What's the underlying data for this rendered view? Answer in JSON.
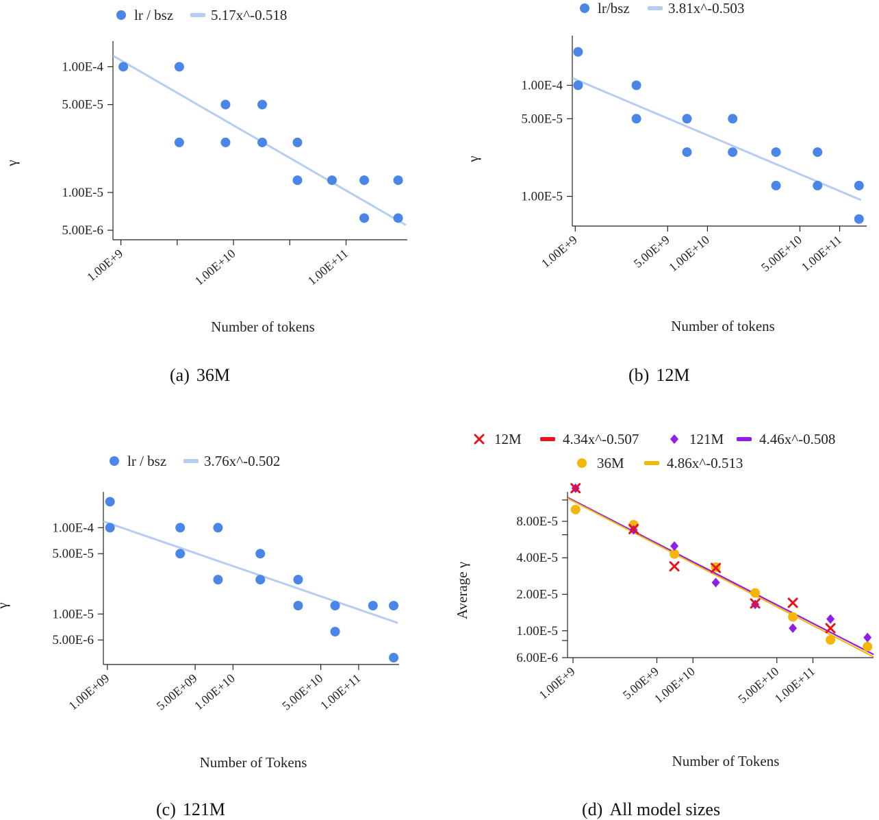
{
  "chart_data": [
    {
      "id": "a",
      "type": "scatter",
      "caption_label": "(a)",
      "caption_title": "36M",
      "xlabel": "Number of tokens",
      "ylabel": "γ",
      "xscale": "log",
      "yscale": "log",
      "xlim": [
        850000000.0,
        350000000000.0
      ],
      "ylim": [
        4.2e-06,
        0.00016
      ],
      "xticks": [
        {
          "v": 1000000000.0,
          "label": "1.00E+9"
        },
        {
          "v": 10000000000.0,
          "label": "1.00E+10"
        },
        {
          "v": 100000000000.0,
          "label": "1.00E+11"
        }
      ],
      "xminor": [
        3162000000.0,
        31620000000.0
      ],
      "yticks": [
        {
          "v": 0.0001,
          "label": "1.00E-4"
        },
        {
          "v": 5e-05,
          "label": "5.00E-5"
        },
        {
          "v": 1e-05,
          "label": "1.00E-5"
        },
        {
          "v": 5e-06,
          "label": "5.00E-6"
        }
      ],
      "yminor": [],
      "legend": {
        "position": "top",
        "entries": [
          {
            "kind": "dot",
            "color": "#4a86e8",
            "label": "lr / bsz"
          },
          {
            "kind": "line",
            "color": "#b4cdf0",
            "label": "5.17x^-0.518"
          }
        ]
      },
      "series": [
        {
          "name": "lr / bsz",
          "kind": "scatter",
          "marker": "circle",
          "color": "#4a86e8",
          "points": [
            [
              1050000000.0,
              0.0001
            ],
            [
              3300000000.0,
              0.0001
            ],
            [
              8500000000.0,
              5e-05
            ],
            [
              8500000000.0,
              2.5e-05
            ],
            [
              3300000000.0,
              2.5e-05
            ],
            [
              18000000000.0,
              5e-05
            ],
            [
              18000000000.0,
              2.5e-05
            ],
            [
              37000000000.0,
              2.5e-05
            ],
            [
              37000000000.0,
              1.25e-05
            ],
            [
              75000000000.0,
              1.25e-05
            ],
            [
              145000000000.0,
              1.25e-05
            ],
            [
              145000000000.0,
              6.25e-06
            ],
            [
              290000000000.0,
              1.25e-05
            ],
            [
              290000000000.0,
              6.25e-06
            ]
          ]
        },
        {
          "name": "5.17x^-0.518",
          "kind": "fit",
          "color": "#b4cdf0",
          "a": 5.17,
          "b": -0.518,
          "xrange": [
            850000000.0,
            340000000000.0
          ]
        }
      ]
    },
    {
      "id": "b",
      "type": "scatter",
      "caption_label": "(b)",
      "caption_title": "12M",
      "xlabel": "Number of tokens",
      "ylabel": "γ",
      "xscale": "log",
      "yscale": "log",
      "xlim": [
        950000000.0,
        160000000000.0
      ],
      "ylim": [
        5.4e-06,
        0.00028
      ],
      "xticks": [
        {
          "v": 1000000000.0,
          "label": "1.00E+9"
        },
        {
          "v": 5000000000.0,
          "label": "5.00E+9"
        },
        {
          "v": 10000000000.0,
          "label": "1.00E+10"
        },
        {
          "v": 50000000000.0,
          "label": "5.00E+10"
        },
        {
          "v": 100000000000.0,
          "label": "1.00E+11"
        }
      ],
      "xminor": [],
      "yticks": [
        {
          "v": 0.0001,
          "label": "1.00E-4"
        },
        {
          "v": 5e-05,
          "label": "5.00E-5"
        },
        {
          "v": 1e-05,
          "label": "1.00E-5"
        }
      ],
      "yminor": [],
      "legend": {
        "position": "top",
        "entries": [
          {
            "kind": "dot",
            "color": "#4a86e8",
            "label": "lr/bsz"
          },
          {
            "kind": "line",
            "color": "#b4cdf0",
            "label": "3.81x^-0.503"
          }
        ]
      },
      "series": [
        {
          "name": "lr/bsz",
          "kind": "scatter",
          "marker": "circle",
          "color": "#4a86e8",
          "points": [
            [
              1050000000.0,
              0.0002
            ],
            [
              1050000000.0,
              0.0001
            ],
            [
              2900000000.0,
              0.0001
            ],
            [
              2900000000.0,
              5e-05
            ],
            [
              7000000000.0,
              5e-05
            ],
            [
              7000000000.0,
              2.5e-05
            ],
            [
              15500000000.0,
              5e-05
            ],
            [
              15500000000.0,
              2.5e-05
            ],
            [
              33000000000.0,
              2.5e-05
            ],
            [
              33000000000.0,
              1.25e-05
            ],
            [
              68000000000.0,
              2.5e-05
            ],
            [
              68000000000.0,
              1.25e-05
            ],
            [
              140000000000.0,
              1.25e-05
            ],
            [
              140000000000.0,
              6.25e-06
            ]
          ]
        },
        {
          "name": "3.81x^-0.503",
          "kind": "fit",
          "color": "#b4cdf0",
          "a": 3.81,
          "b": -0.503,
          "xrange": [
            950000000.0,
            145000000000.0
          ]
        }
      ]
    },
    {
      "id": "c",
      "type": "scatter",
      "caption_label": "(c)",
      "caption_title": "121M",
      "xlabel": "Number of Tokens",
      "ylabel": "γ",
      "xscale": "log",
      "yscale": "log",
      "xlim": [
        930000000.0,
        210000000000.0
      ],
      "ylim": [
        2.6e-06,
        0.00026
      ],
      "xticks": [
        {
          "v": 1000000000.0,
          "label": "1.00E+09"
        },
        {
          "v": 5000000000.0,
          "label": "5.00E+09"
        },
        {
          "v": 10000000000.0,
          "label": "1.00E+10"
        },
        {
          "v": 50000000000.0,
          "label": "5.00E+10"
        },
        {
          "v": 100000000000.0,
          "label": "1.00E+11"
        }
      ],
      "xminor": [],
      "yticks": [
        {
          "v": 0.0001,
          "label": "1.00E-4"
        },
        {
          "v": 5e-05,
          "label": "5.00E-5"
        },
        {
          "v": 1e-05,
          "label": "1.00E-5"
        },
        {
          "v": 5e-06,
          "label": "5.00E-6"
        }
      ],
      "yminor": [],
      "legend": {
        "position": "top",
        "entries": [
          {
            "kind": "dot",
            "color": "#4a86e8",
            "label": "lr / bsz"
          },
          {
            "kind": "line",
            "color": "#b4cdf0",
            "label": "3.76x^-0.502"
          }
        ]
      },
      "series": [
        {
          "name": "lr / bsz",
          "kind": "scatter",
          "marker": "circle",
          "color": "#4a86e8",
          "points": [
            [
              1050000000.0,
              0.0002
            ],
            [
              1050000000.0,
              0.0001
            ],
            [
              3800000000.0,
              0.0001
            ],
            [
              3800000000.0,
              5e-05
            ],
            [
              7600000000.0,
              0.0001
            ],
            [
              7600000000.0,
              2.5e-05
            ],
            [
              16500000000.0,
              5e-05
            ],
            [
              16500000000.0,
              2.5e-05
            ],
            [
              33000000000.0,
              2.5e-05
            ],
            [
              33000000000.0,
              1.25e-05
            ],
            [
              65000000000.0,
              1.25e-05
            ],
            [
              65000000000.0,
              6.25e-06
            ],
            [
              130000000000.0,
              1.25e-05
            ],
            [
              190000000000.0,
              1.25e-05
            ],
            [
              190000000000.0,
              3.12e-06
            ]
          ]
        },
        {
          "name": "3.76x^-0.502",
          "kind": "fit",
          "color": "#b4cdf0",
          "a": 3.76,
          "b": -0.502,
          "xrange": [
            930000000.0,
            205000000000.0
          ]
        }
      ]
    },
    {
      "id": "d",
      "type": "scatter",
      "caption_label": "(d)",
      "caption_title": "All model sizes",
      "xlabel": "Number of Tokens",
      "ylabel": "Average γ",
      "xscale": "log",
      "yscale": "log",
      "xlim": [
        900000000.0,
        320000000000.0
      ],
      "ylim": [
        6e-06,
        0.00014
      ],
      "xticks": [
        {
          "v": 1000000000.0,
          "label": "1.00E+9"
        },
        {
          "v": 5000000000.0,
          "label": "5.00E+9"
        },
        {
          "v": 10000000000.0,
          "label": "1.00E+10"
        },
        {
          "v": 50000000000.0,
          "label": "5.00E+10"
        },
        {
          "v": 100000000000.0,
          "label": "1.00E+11"
        }
      ],
      "xminor": [],
      "yticks": [
        {
          "v": 8e-05,
          "label": "8.00E-5"
        },
        {
          "v": 4e-05,
          "label": "4.00E-5"
        },
        {
          "v": 2e-05,
          "label": "2.00E-5"
        },
        {
          "v": 1e-05,
          "label": "1.00E-5"
        },
        {
          "v": 6e-06,
          "label": "6.00E-6"
        }
      ],
      "yminor": [
        0.00012,
        6.2e-05,
        8.3e-06
      ],
      "legend": {
        "position": "top",
        "entries": [
          {
            "kind": "star",
            "color": "#e5141d",
            "label": "12M"
          },
          {
            "kind": "line",
            "color": "#e5141d",
            "label": "4.34x^-0.507"
          },
          {
            "kind": "diamond",
            "color": "#8f1ee8",
            "label": "121M"
          },
          {
            "kind": "line",
            "color": "#8f1ee8",
            "label": "4.46x^-0.508"
          },
          {
            "kind": "dot",
            "color": "#f5b60a",
            "label": "36M"
          },
          {
            "kind": "line",
            "color": "#f5b60a",
            "label": "4.86x^-0.513"
          }
        ]
      },
      "series": [
        {
          "name": "4.34x^-0.507",
          "kind": "fit",
          "color": "#e5141d",
          "a": 4.34,
          "b": -0.507,
          "xrange": [
            900000000.0,
            320000000000.0
          ]
        },
        {
          "name": "4.46x^-0.508",
          "kind": "fit",
          "color": "#8f1ee8",
          "a": 4.46,
          "b": -0.508,
          "xrange": [
            900000000.0,
            320000000000.0
          ]
        },
        {
          "name": "4.86x^-0.513",
          "kind": "fit",
          "color": "#f5b60a",
          "a": 4.86,
          "b": -0.513,
          "xrange": [
            900000000.0,
            320000000000.0
          ]
        },
        {
          "name": "36M",
          "kind": "scatter",
          "marker": "circle",
          "color": "#f5b60a",
          "points": [
            [
              1050000000.0,
              0.0001
            ],
            [
              3200000000.0,
              7.5e-05
            ],
            [
              7000000000.0,
              4.3e-05
            ],
            [
              15500000000.0,
              3.35e-05
            ],
            [
              33000000000.0,
              2.05e-05
            ],
            [
              68000000000.0,
              1.3e-05
            ],
            [
              140000000000.0,
              8.4e-06
            ],
            [
              285000000000.0,
              7.4e-06
            ]
          ]
        },
        {
          "name": "121M",
          "kind": "scatter",
          "marker": "diamond",
          "color": "#8f1ee8",
          "points": [
            [
              1050000000.0,
              0.00015
            ],
            [
              3200000000.0,
              6.8e-05
            ],
            [
              7000000000.0,
              5e-05
            ],
            [
              15500000000.0,
              2.5e-05
            ],
            [
              33000000000.0,
              1.65e-05
            ],
            [
              68000000000.0,
              1.05e-05
            ],
            [
              140000000000.0,
              1.25e-05
            ],
            [
              285000000000.0,
              8.8e-06
            ]
          ]
        },
        {
          "name": "12M",
          "kind": "scatter",
          "marker": "star",
          "color": "#e5141d",
          "points": [
            [
              1050000000.0,
              0.00015
            ],
            [
              3200000000.0,
              6.9e-05
            ],
            [
              7000000000.0,
              3.4e-05
            ],
            [
              15500000000.0,
              3.3e-05
            ],
            [
              33000000000.0,
              1.68e-05
            ],
            [
              68000000000.0,
              1.7e-05
            ],
            [
              140000000000.0,
              1.05e-05
            ]
          ]
        }
      ]
    }
  ]
}
